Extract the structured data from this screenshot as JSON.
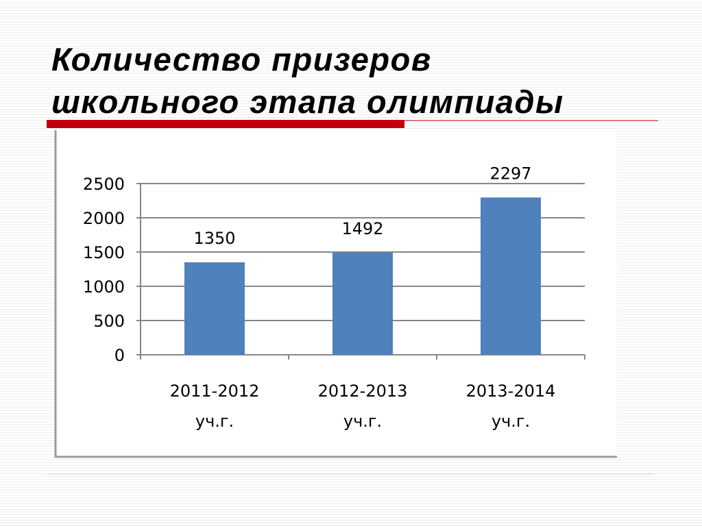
{
  "chart_data": {
    "type": "bar",
    "title": "Количество призеров школьного этапа олимпиады",
    "categories": [
      "2011-2012 уч.г.",
      "2012-2013 уч.г.",
      "2013-2014 уч.г."
    ],
    "values": [
      1350,
      1492,
      2297
    ],
    "color": "#4f81bd",
    "ylim": [
      0,
      2500
    ],
    "yticks": [
      0,
      500,
      1000,
      1500,
      2000,
      2500
    ],
    "grid": true
  }
}
